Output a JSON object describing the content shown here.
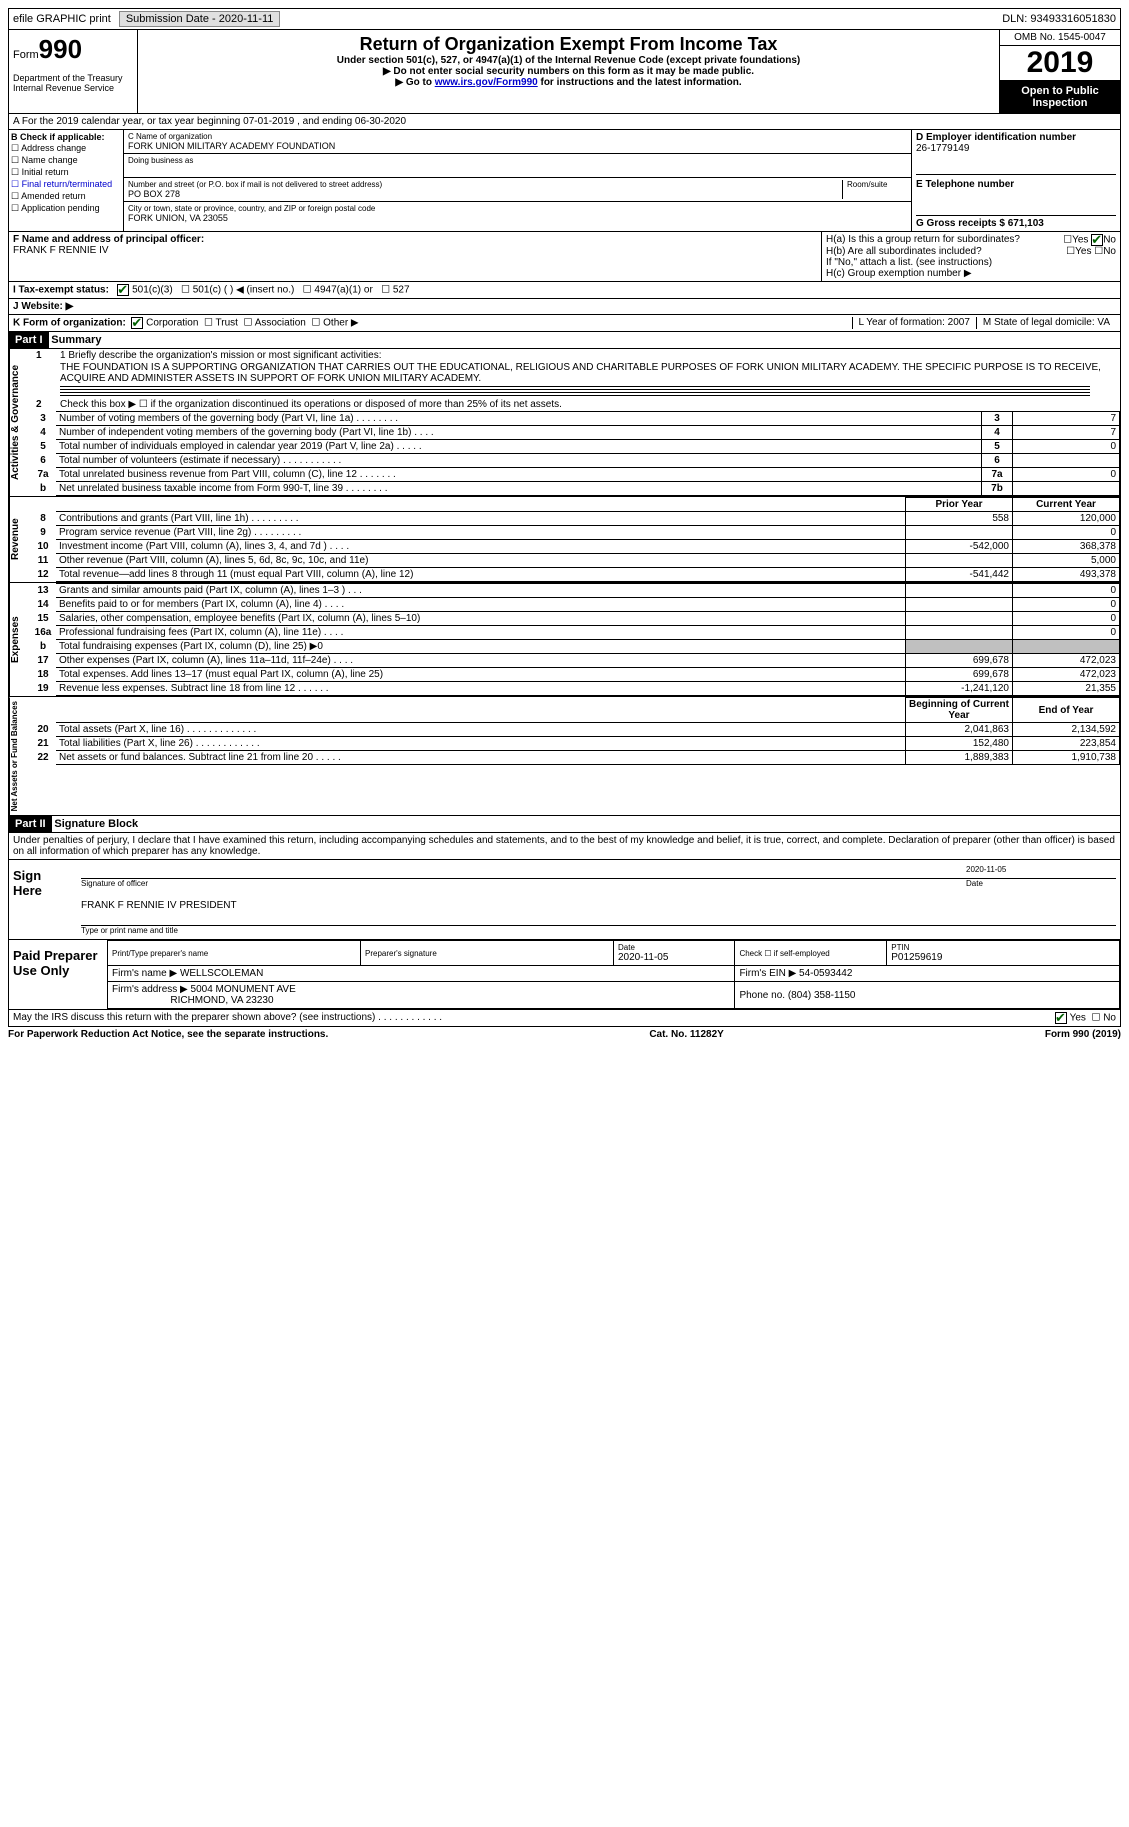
{
  "topbar": {
    "efile": "efile GRAPHIC print",
    "submission_label": "Submission Date - 2020-11-11",
    "dln": "DLN: 93493316051830"
  },
  "header": {
    "form_prefix": "Form",
    "form_number": "990",
    "title": "Return of Organization Exempt From Income Tax",
    "sub1": "Under section 501(c), 527, or 4947(a)(1) of the Internal Revenue Code (except private foundations)",
    "sub2": "▶ Do not enter social security numbers on this form as it may be made public.",
    "sub3_pre": "▶ Go to ",
    "sub3_link": "www.irs.gov/Form990",
    "sub3_post": " for instructions and the latest information.",
    "dept": "Department of the Treasury\nInternal Revenue Service",
    "omb": "OMB No. 1545-0047",
    "year": "2019",
    "open": "Open to Public Inspection"
  },
  "row_a": "A For the 2019 calendar year, or tax year beginning 07-01-2019      , and ending 06-30-2020",
  "section_b": {
    "label": "B Check if applicable:",
    "items": [
      "Address change",
      "Name change",
      "Initial return",
      "Final return/terminated",
      "Amended return",
      "Application pending"
    ]
  },
  "section_c": {
    "name_label": "C Name of organization",
    "name": "FORK UNION MILITARY ACADEMY FOUNDATION",
    "dba_label": "Doing business as",
    "addr_label": "Number and street (or P.O. box if mail is not delivered to street address)",
    "addr": "PO BOX 278",
    "room_label": "Room/suite",
    "city_label": "City or town, state or province, country, and ZIP or foreign postal code",
    "city": "FORK UNION, VA  23055"
  },
  "section_de": {
    "d_label": "D Employer identification number",
    "d_val": "26-1779149",
    "e_label": "E Telephone number",
    "g_label": "G Gross receipts $ 671,103"
  },
  "section_f": {
    "label": "F  Name and address of principal officer:",
    "name": "FRANK F RENNIE IV"
  },
  "section_h": {
    "a": "H(a)  Is this a group return for subordinates?",
    "b": "H(b)  Are all subordinates included?",
    "b_note": "If \"No,\" attach a list. (see instructions)",
    "c": "H(c)  Group exemption number ▶",
    "yes": "Yes",
    "no": "No"
  },
  "row_i": {
    "label": "I    Tax-exempt status:",
    "opts": [
      "501(c)(3)",
      "501(c) (   ) ◀ (insert no.)",
      "4947(a)(1) or",
      "527"
    ]
  },
  "row_j": "J    Website: ▶",
  "row_k": {
    "label": "K Form of organization:",
    "opts": [
      "Corporation",
      "Trust",
      "Association",
      "Other ▶"
    ]
  },
  "row_lm": {
    "l": "L Year of formation: 2007",
    "m": "M State of legal domicile: VA"
  },
  "part1": {
    "header": "Part I",
    "title": "Summary",
    "line1_label": "1   Briefly describe the organization's mission or most significant activities:",
    "mission": "THE FOUNDATION IS A SUPPORTING ORGANIZATION THAT CARRIES OUT THE EDUCATIONAL, RELIGIOUS AND CHARITABLE PURPOSES OF FORK UNION MILITARY ACADEMY. THE SPECIFIC PURPOSE IS TO RECEIVE, ACQUIRE AND ADMINISTER ASSETS IN SUPPORT OF FORK UNION MILITARY ACADEMY.",
    "line2": "Check this box ▶ ☐  if the organization discontinued its operations or disposed of more than 25% of its net assets.",
    "gov_rows": [
      {
        "n": "3",
        "desc": "Number of voting members of the governing body (Part VI, line 1a)   .    .    .    .    .    .    .    .",
        "idx": "3",
        "val": "7"
      },
      {
        "n": "4",
        "desc": "Number of independent voting members of the governing body (Part VI, line 1b)   .    .    .    .",
        "idx": "4",
        "val": "7"
      },
      {
        "n": "5",
        "desc": "Total number of individuals employed in calendar year 2019 (Part V, line 2a)   .    .    .    .    .",
        "idx": "5",
        "val": "0"
      },
      {
        "n": "6",
        "desc": "Total number of volunteers (estimate if necessary)   .    .    .    .    .    .    .    .    .    .    .",
        "idx": "6",
        "val": ""
      },
      {
        "n": "7a",
        "desc": "Total unrelated business revenue from Part VIII, column (C), line 12   .    .    .    .    .    .    .",
        "idx": "7a",
        "val": "0"
      },
      {
        "n": "b",
        "desc": "Net unrelated business taxable income from Form 990-T, line 39   .    .    .    .    .    .    .    .",
        "idx": "7b",
        "val": ""
      }
    ],
    "prior_year": "Prior Year",
    "current_year": "Current Year",
    "rev_rows": [
      {
        "n": "8",
        "desc": "Contributions and grants (Part VIII, line 1h)   .    .    .    .    .    .    .    .    .",
        "py": "558",
        "cy": "120,000"
      },
      {
        "n": "9",
        "desc": "Program service revenue (Part VIII, line 2g)   .    .    .    .    .    .    .    .    .",
        "py": "",
        "cy": "0"
      },
      {
        "n": "10",
        "desc": "Investment income (Part VIII, column (A), lines 3, 4, and 7d )    .    .    .    .",
        "py": "-542,000",
        "cy": "368,378"
      },
      {
        "n": "11",
        "desc": "Other revenue (Part VIII, column (A), lines 5, 6d, 8c, 9c, 10c, and 11e)",
        "py": "",
        "cy": "5,000"
      },
      {
        "n": "12",
        "desc": "Total revenue—add lines 8 through 11 (must equal Part VIII, column (A), line 12)",
        "py": "-541,442",
        "cy": "493,378"
      }
    ],
    "exp_rows": [
      {
        "n": "13",
        "desc": "Grants and similar amounts paid (Part IX, column (A), lines 1–3 )    .    .    .",
        "py": "",
        "cy": "0"
      },
      {
        "n": "14",
        "desc": "Benefits paid to or for members (Part IX, column (A), line 4)   .    .    .    .",
        "py": "",
        "cy": "0"
      },
      {
        "n": "15",
        "desc": "Salaries, other compensation, employee benefits (Part IX, column (A), lines 5–10)",
        "py": "",
        "cy": "0"
      },
      {
        "n": "16a",
        "desc": "Professional fundraising fees (Part IX, column (A), line 11e)   .    .    .    .",
        "py": "",
        "cy": "0"
      },
      {
        "n": "b",
        "desc": "Total fundraising expenses (Part IX, column (D), line 25) ▶0",
        "py": "gray",
        "cy": "gray"
      },
      {
        "n": "17",
        "desc": "Other expenses (Part IX, column (A), lines 11a–11d, 11f–24e)   .    .    .    .",
        "py": "699,678",
        "cy": "472,023"
      },
      {
        "n": "18",
        "desc": "Total expenses. Add lines 13–17 (must equal Part IX, column (A), line 25)",
        "py": "699,678",
        "cy": "472,023"
      },
      {
        "n": "19",
        "desc": "Revenue less expenses. Subtract line 18 from line 12   .    .    .    .    .    .",
        "py": "-1,241,120",
        "cy": "21,355"
      }
    ],
    "begin_year": "Beginning of Current Year",
    "end_year": "End of Year",
    "net_rows": [
      {
        "n": "20",
        "desc": "Total assets (Part X, line 16)   .    .    .    .    .    .    .    .    .    .    .    .    .",
        "py": "2,041,863",
        "cy": "2,134,592"
      },
      {
        "n": "21",
        "desc": "Total liabilities (Part X, line 26)   .    .    .    .    .    .    .    .    .    .    .    .",
        "py": "152,480",
        "cy": "223,854"
      },
      {
        "n": "22",
        "desc": "Net assets or fund balances. Subtract line 21 from line 20   .    .    .    .    .",
        "py": "1,889,383",
        "cy": "1,910,738"
      }
    ],
    "vlabel_gov": "Activities & Governance",
    "vlabel_rev": "Revenue",
    "vlabel_exp": "Expenses",
    "vlabel_net": "Net Assets or Fund Balances"
  },
  "part2": {
    "header": "Part II",
    "title": "Signature Block",
    "declaration": "Under penalties of perjury, I declare that I have examined this return, including accompanying schedules and statements, and to the best of my knowledge and belief, it is true, correct, and complete. Declaration of preparer (other than officer) is based on all information of which preparer has any knowledge.",
    "sign_here": "Sign Here",
    "sig_officer": "Signature of officer",
    "sig_date": "2020-11-05",
    "date_label": "Date",
    "officer_name": "FRANK F RENNIE IV PRESIDENT",
    "type_name": "Type or print name and title",
    "paid_prep": "Paid Preparer Use Only",
    "prep_name_label": "Print/Type preparer's name",
    "prep_sig_label": "Preparer's signature",
    "prep_date_label": "Date",
    "prep_date": "2020-11-05",
    "check_self": "Check ☐ if self-employed",
    "ptin_label": "PTIN",
    "ptin": "P01259619",
    "firm_name_label": "Firm's name    ▶",
    "firm_name": "WELLSCOLEMAN",
    "firm_ein_label": "Firm's EIN ▶",
    "firm_ein": "54-0593442",
    "firm_addr_label": "Firm's address ▶",
    "firm_addr1": "5004 MONUMENT AVE",
    "firm_addr2": "RICHMOND, VA  23230",
    "phone_label": "Phone no.",
    "phone": "(804) 358-1150",
    "discuss": "May the IRS discuss this return with the preparer shown above? (see instructions)   .    .    .    .    .    .    .    .    .    .    .    .",
    "yes": "Yes",
    "no": "No"
  },
  "footer": {
    "left": "For Paperwork Reduction Act Notice, see the separate instructions.",
    "mid": "Cat. No. 11282Y",
    "right": "Form 990 (2019)"
  }
}
